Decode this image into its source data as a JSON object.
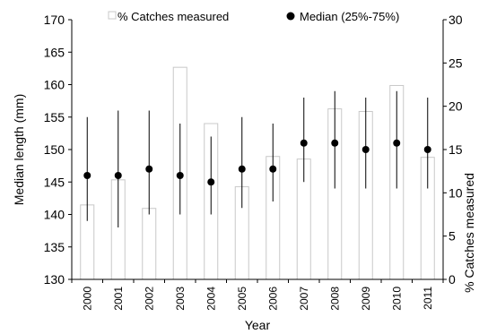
{
  "chart_data": {
    "type": "bar",
    "categories": [
      "2000",
      "2001",
      "2002",
      "2003",
      "2004",
      "2005",
      "2006",
      "2007",
      "2008",
      "2009",
      "2010",
      "2011"
    ],
    "xlabel": "Year",
    "ylabel": "Median length (mm)",
    "y2label": "% Catches measured",
    "ylim": [
      130,
      170
    ],
    "y2lim": [
      0,
      30
    ],
    "yticks": [
      "130",
      "135",
      "140",
      "145",
      "150",
      "155",
      "160",
      "165",
      "170"
    ],
    "y2ticks": [
      "0",
      "5",
      "10",
      "15",
      "20",
      "25",
      "30"
    ],
    "grid": false,
    "legend_position": "top",
    "series": [
      {
        "name": "% Catches measured",
        "type": "bar",
        "axis": "right",
        "color": "#c8c8c8",
        "values": [
          8.6,
          11.5,
          8.2,
          24.5,
          18,
          10.7,
          14.2,
          13.9,
          19.7,
          19.4,
          22.4,
          14.1
        ]
      },
      {
        "name": "Median (25%-75%)",
        "type": "point_with_range",
        "axis": "left",
        "color": "#000000",
        "median": [
          146,
          146,
          147,
          146,
          145,
          147,
          147,
          151,
          151,
          150,
          151,
          150
        ],
        "q25": [
          139,
          138,
          140,
          140,
          140,
          141,
          142,
          145,
          144,
          144,
          144,
          144
        ],
        "q75": [
          155,
          156,
          156,
          154,
          152,
          155,
          154,
          158,
          159,
          158,
          159,
          158
        ]
      }
    ]
  }
}
